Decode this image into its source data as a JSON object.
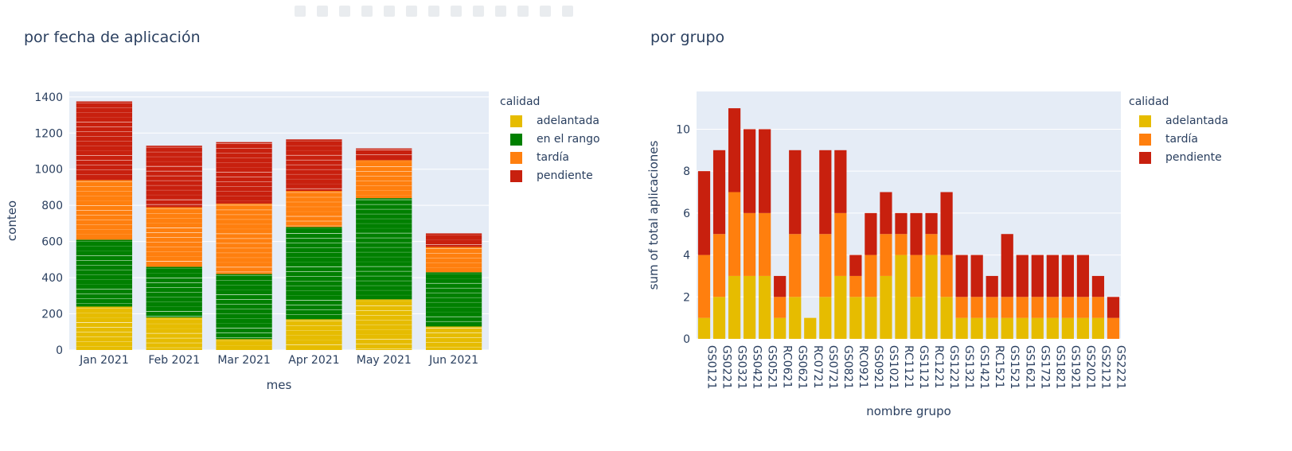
{
  "colors": {
    "adelantada": "#e6bc00",
    "en el rango": "#008000",
    "tardía": "#ff7f0e",
    "pendiente": "#c8200e",
    "plot_bg": "#e5ecf6",
    "grid": "#ffffff"
  },
  "left": {
    "title": "por fecha de aplicación",
    "legend_title": "calidad",
    "legend": [
      "adelantada",
      "en el rango",
      "tardía",
      "pendiente"
    ]
  },
  "right": {
    "title": "por grupo",
    "legend_title": "calidad",
    "legend": [
      "adelantada",
      "tardía",
      "pendiente"
    ]
  },
  "chart_data": [
    {
      "type": "bar",
      "stacked": true,
      "title": "por fecha de aplicación",
      "xlabel": "mes",
      "ylabel": "conteo",
      "ylim": [
        0,
        1430
      ],
      "yticks": [
        0,
        200,
        400,
        600,
        800,
        1000,
        1200,
        1400
      ],
      "categories": [
        "Jan 2021",
        "Feb 2021",
        "Mar 2021",
        "Apr 2021",
        "May 2021",
        "Jun 2021"
      ],
      "series": [
        {
          "name": "adelantada",
          "values": [
            240,
            180,
            60,
            170,
            280,
            130
          ]
        },
        {
          "name": "en el rango",
          "values": [
            370,
            280,
            360,
            510,
            560,
            300
          ]
        },
        {
          "name": "tardía",
          "values": [
            330,
            330,
            390,
            200,
            210,
            140
          ]
        },
        {
          "name": "pendiente",
          "values": [
            435,
            340,
            340,
            285,
            65,
            75
          ]
        }
      ],
      "legend_title": "calidad",
      "legend_position": "right",
      "grid": true
    },
    {
      "type": "bar",
      "stacked": true,
      "title": "por grupo",
      "xlabel": "nombre grupo",
      "ylabel": "sum of total aplicaciones",
      "ylim": [
        0,
        11.8
      ],
      "yticks": [
        0,
        2,
        4,
        6,
        8,
        10
      ],
      "categories": [
        "GS0121",
        "GS0221",
        "GS0321",
        "GS0421",
        "GS0521",
        "RC0621",
        "GS0621",
        "RC0721",
        "GS0721",
        "GS0821",
        "RC0921",
        "GS0921",
        "GS1021",
        "RC1121",
        "GS1121",
        "RC1221",
        "GS1221",
        "GS1321",
        "GS1421",
        "RC1521",
        "GS1521",
        "GS1621",
        "GS1721",
        "GS1821",
        "GS1921",
        "GS2021",
        "GS2121",
        "GS2221"
      ],
      "series": [
        {
          "name": "adelantada",
          "values": [
            1,
            2,
            3,
            3,
            3,
            1,
            2,
            1,
            2,
            3,
            2,
            2,
            3,
            4,
            2,
            4,
            2,
            1,
            1,
            1,
            1,
            1,
            1,
            1,
            1,
            1,
            1,
            0
          ]
        },
        {
          "name": "tardía",
          "values": [
            3,
            3,
            4,
            3,
            3,
            1,
            3,
            0,
            3,
            3,
            1,
            2,
            2,
            1,
            2,
            1,
            2,
            1,
            1,
            1,
            1,
            1,
            1,
            1,
            1,
            1,
            1,
            1
          ]
        },
        {
          "name": "pendiente",
          "values": [
            4,
            4,
            4,
            4,
            4,
            1,
            4,
            0,
            4,
            3,
            1,
            2,
            2,
            1,
            2,
            1,
            3,
            2,
            2,
            1,
            3,
            2,
            2,
            2,
            2,
            2,
            1,
            1
          ]
        }
      ],
      "legend_title": "calidad",
      "legend_position": "right",
      "grid": true
    }
  ]
}
